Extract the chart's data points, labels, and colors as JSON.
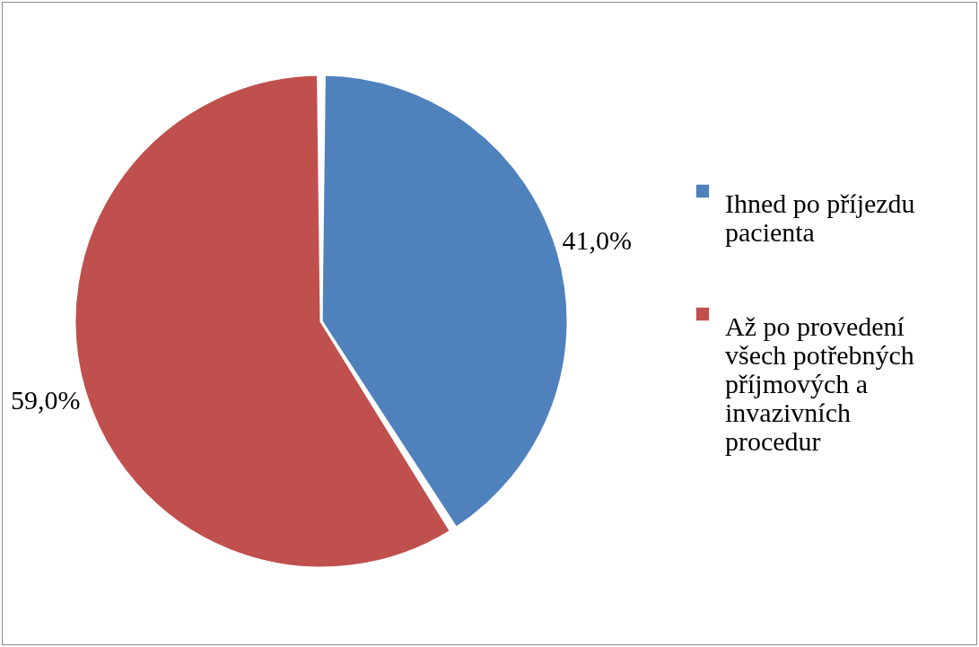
{
  "chart_data": {
    "type": "pie",
    "categories": [
      "Ihned po příjezdu pacienta",
      "Až po provedení všech potřebných příjmových a invazivních procedur"
    ],
    "values": [
      41.0,
      59.0
    ],
    "colors": [
      "#4f81bd",
      "#c0504d"
    ],
    "value_labels": [
      "41,0%",
      "59,0%"
    ],
    "legend": "right"
  }
}
